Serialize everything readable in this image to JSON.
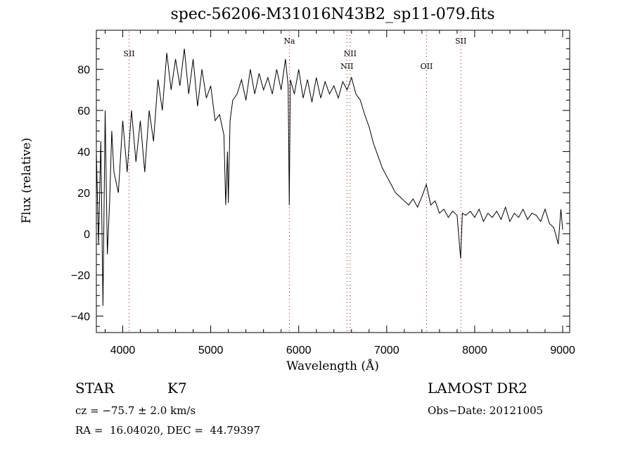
{
  "chart_data": {
    "type": "line",
    "title": "spec-56206-M31016N43B2_sp11-079.fits",
    "xlabel": "Wavelength (Å)",
    "ylabel": "Flux (relative)",
    "xlim": [
      3700,
      9080
    ],
    "ylim": [
      -48,
      99
    ],
    "xticks": [
      4000,
      5000,
      6000,
      7000,
      8000,
      9000
    ],
    "xtick_labels": [
      "4000",
      "5000",
      "6000",
      "7000",
      "8000",
      "9000"
    ],
    "yticks": [
      -40,
      -20,
      0,
      20,
      40,
      60,
      80
    ],
    "ytick_labels": [
      "−40",
      "−20",
      "0",
      "20",
      "40",
      "60",
      "80"
    ],
    "grid": false,
    "line_color": "#000000",
    "marker_color": "#8b1a1a",
    "line_markers": [
      {
        "label": "SII",
        "wavelength": 4072,
        "row": 2
      },
      {
        "label": "Na",
        "wavelength": 5894,
        "row": 1
      },
      {
        "label": "NII",
        "wavelength": 6548,
        "row": 3
      },
      {
        "label": "NII",
        "wavelength": 6584,
        "row": 2
      },
      {
        "label": "OII",
        "wavelength": 7453,
        "row": 3
      },
      {
        "label": "SII",
        "wavelength": 7843,
        "row": 1
      }
    ],
    "series": [
      {
        "name": "spectrum",
        "x": [
          3700,
          3725,
          3750,
          3775,
          3800,
          3825,
          3850,
          3875,
          3900,
          3950,
          4000,
          4050,
          4100,
          4150,
          4200,
          4250,
          4300,
          4350,
          4400,
          4450,
          4500,
          4550,
          4600,
          4650,
          4700,
          4750,
          4800,
          4850,
          4900,
          4950,
          5000,
          5050,
          5100,
          5150,
          5170,
          5190,
          5200,
          5220,
          5250,
          5300,
          5350,
          5400,
          5450,
          5500,
          5550,
          5600,
          5650,
          5700,
          5750,
          5800,
          5850,
          5880,
          5893,
          5905,
          5950,
          6000,
          6050,
          6100,
          6150,
          6200,
          6250,
          6300,
          6350,
          6400,
          6450,
          6500,
          6550,
          6600,
          6650,
          6700,
          6750,
          6800,
          6850,
          6900,
          6950,
          7000,
          7050,
          7100,
          7150,
          7200,
          7250,
          7300,
          7350,
          7400,
          7450,
          7500,
          7550,
          7600,
          7650,
          7700,
          7750,
          7800,
          7840,
          7860,
          7900,
          7950,
          8000,
          8050,
          8100,
          8150,
          8200,
          8250,
          8300,
          8350,
          8400,
          8450,
          8500,
          8550,
          8600,
          8650,
          8700,
          8750,
          8800,
          8850,
          8900,
          8950,
          8980,
          9000
        ],
        "y": [
          40,
          -5,
          45,
          -35,
          60,
          -10,
          15,
          50,
          30,
          20,
          55,
          30,
          60,
          35,
          55,
          30,
          60,
          45,
          75,
          60,
          88,
          70,
          85,
          72,
          90,
          68,
          85,
          62,
          80,
          66,
          72,
          55,
          58,
          48,
          14,
          40,
          15,
          55,
          65,
          68,
          75,
          65,
          80,
          68,
          78,
          70,
          76,
          68,
          80,
          70,
          85,
          72,
          14,
          75,
          68,
          80,
          66,
          75,
          64,
          76,
          66,
          74,
          68,
          72,
          66,
          74,
          70,
          76,
          68,
          65,
          58,
          52,
          44,
          38,
          32,
          28,
          24,
          20,
          18,
          16,
          14,
          17,
          13,
          18,
          24,
          14,
          16,
          10,
          12,
          8,
          11,
          9,
          -12,
          10,
          9,
          11,
          8,
          12,
          6,
          10,
          8,
          11,
          7,
          13,
          6,
          10,
          8,
          12,
          7,
          10,
          9,
          6,
          12,
          5,
          3,
          -5,
          12,
          2
        ]
      }
    ]
  },
  "info": {
    "object_class": "STAR",
    "subclass": "K7",
    "cz": "cz = −75.7 ± 2.0 km/s",
    "coords": "RA =  16.04020, DEC =  44.79397",
    "survey": "LAMOST DR2",
    "obs_date": "Obs−Date: 20121005"
  }
}
